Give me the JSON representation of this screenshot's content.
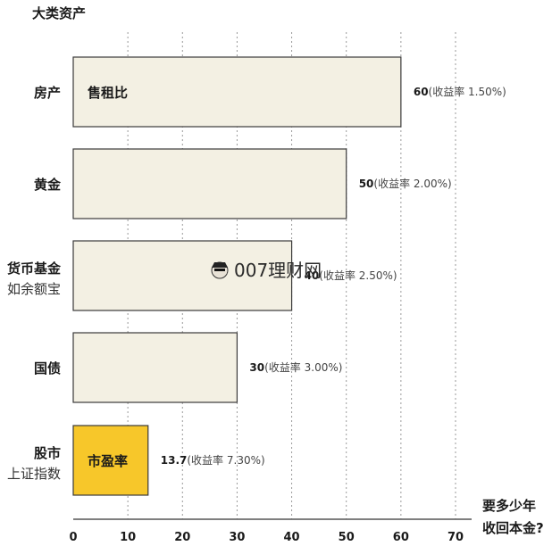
{
  "chart_data": {
    "type": "bar",
    "orientation": "horizontal",
    "y_title": "大类资产",
    "x_title": [
      "要多少年",
      "收回本金?"
    ],
    "xlim": [
      0,
      70
    ],
    "xticks": [
      0,
      10,
      20,
      30,
      40,
      50,
      60,
      70
    ],
    "grid": true,
    "categories": [
      {
        "name": "房产",
        "sub": "",
        "value": 60,
        "yield_label": "(收益率 1.50%)",
        "in_bar_label": "售租比",
        "highlight": false
      },
      {
        "name": "黄金",
        "sub": "",
        "value": 50,
        "yield_label": "(收益率 2.00%)",
        "in_bar_label": "",
        "highlight": false
      },
      {
        "name": "货币基金",
        "sub": "如余额宝",
        "value": 40,
        "yield_label": "(收益率 2.50%)",
        "in_bar_label": "",
        "highlight": false
      },
      {
        "name": "国债",
        "sub": "",
        "value": 30,
        "yield_label": "(收益率 3.00%)",
        "in_bar_label": "",
        "highlight": false
      },
      {
        "name": "股市",
        "sub": "上证指数",
        "value": 13.7,
        "yield_label": "(收益率 7.30%)",
        "in_bar_label": "市盈率",
        "highlight": true
      }
    ],
    "colors": {
      "bar": "#f3f0e3",
      "bar_stroke": "#3a3a3a",
      "highlight": "#f7c72a"
    },
    "watermark": "007理财网"
  }
}
